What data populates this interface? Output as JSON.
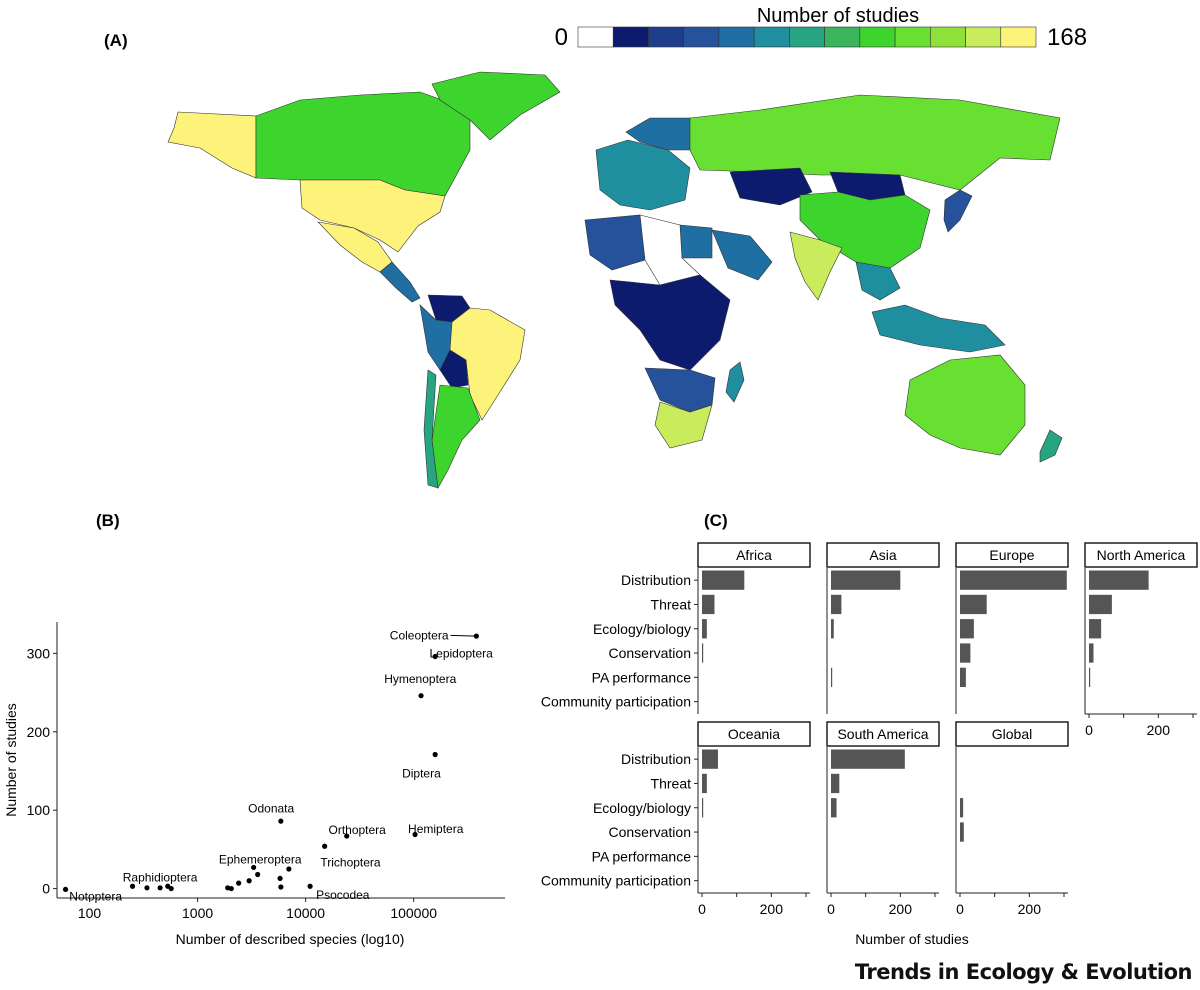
{
  "panels": {
    "a": "(A)",
    "b": "(B)",
    "c": "(C)"
  },
  "footer": {
    "journal": "Trends in Ecology & Evolution"
  },
  "map": {
    "legend_title": "Number of studies",
    "legend_min": "0",
    "legend_max": "168",
    "colorbar": [
      "#ffffff",
      "#0d1b6e",
      "#1e3d8a",
      "#25529a",
      "#1f6fa3",
      "#1f8f9f",
      "#27a582",
      "#3bb55c",
      "#3ed42e",
      "#67e031",
      "#8fe038",
      "#c8ec5c",
      "#fdf27a"
    ],
    "regions": [
      {
        "name": "Alaska",
        "color": "#fdf27a"
      },
      {
        "name": "Canada",
        "color": "#3ed42e"
      },
      {
        "name": "Greenland",
        "color": "#3ed42e"
      },
      {
        "name": "United States",
        "color": "#fdf27a"
      },
      {
        "name": "Mexico",
        "color": "#fdf27a"
      },
      {
        "name": "Central America",
        "color": "#1f6fa3"
      },
      {
        "name": "Colombia / Venezuela",
        "color": "#0d1b6e"
      },
      {
        "name": "Peru",
        "color": "#1f6fa3"
      },
      {
        "name": "Brazil",
        "color": "#fdf27a"
      },
      {
        "name": "Bolivia",
        "color": "#0d1b6e"
      },
      {
        "name": "Argentina",
        "color": "#3ed42e"
      },
      {
        "name": "Chile",
        "color": "#27a582"
      },
      {
        "name": "Russia",
        "color": "#67e031"
      },
      {
        "name": "Scandinavia",
        "color": "#1f6fa3"
      },
      {
        "name": "Europe",
        "color": "#1f8f9f"
      },
      {
        "name": "Kazakhstan",
        "color": "#0d1b6e"
      },
      {
        "name": "Mongolia",
        "color": "#0d1b6e"
      },
      {
        "name": "China",
        "color": "#3ed42e"
      },
      {
        "name": "India",
        "color": "#c8ec5c"
      },
      {
        "name": "Japan",
        "color": "#25529a"
      },
      {
        "name": "Southeast Asia",
        "color": "#1f8f9f"
      },
      {
        "name": "Indonesia",
        "color": "#1f8f9f"
      },
      {
        "name": "Australia",
        "color": "#67e031"
      },
      {
        "name": "New Zealand",
        "color": "#27a582"
      },
      {
        "name": "Algeria",
        "color": "#25529a"
      },
      {
        "name": "Egypt",
        "color": "#1f6fa3"
      },
      {
        "name": "Central Africa",
        "color": "#0d1b6e"
      },
      {
        "name": "Southern Africa",
        "color": "#25529a"
      },
      {
        "name": "South Africa",
        "color": "#c8ec5c"
      },
      {
        "name": "Madagascar",
        "color": "#1f8f9f"
      },
      {
        "name": "Arabian Peninsula",
        "color": "#1f6fa3"
      }
    ]
  },
  "chart_data": [
    {
      "type": "scatter",
      "title": "",
      "xlabel": "Number of described species (log10)",
      "ylabel": "Number of studies",
      "xscale": "log10",
      "xlim": [
        50,
        700000
      ],
      "ylim": [
        -12,
        340
      ],
      "xticks": [
        100,
        1000,
        10000,
        100000
      ],
      "xtick_labels": [
        "100",
        "1000",
        "10000",
        "100000"
      ],
      "yticks": [
        0,
        100,
        200,
        300
      ],
      "ytick_labels": [
        "0",
        "100",
        "200",
        "300"
      ],
      "points": [
        {
          "label": "Coleoptera",
          "x": 380000,
          "y": 322,
          "lx": 210000,
          "ly": 323,
          "anchor": "end"
        },
        {
          "label": "Lepidoptera",
          "x": 158000,
          "y": 296,
          "lx": 140000,
          "ly": 300,
          "anchor": "start"
        },
        {
          "label": "Hymenoptera",
          "x": 117000,
          "y": 246,
          "lx": 115000,
          "ly": 267,
          "anchor": "middle"
        },
        {
          "label": "Diptera",
          "x": 158000,
          "y": 171,
          "lx": 118000,
          "ly": 147,
          "anchor": "middle"
        },
        {
          "label": "Hemiptera",
          "x": 103000,
          "y": 69,
          "lx": 160000,
          "ly": 76,
          "anchor": "middle"
        },
        {
          "label": "Odonata",
          "x": 5900,
          "y": 86,
          "lx": 4800,
          "ly": 102,
          "anchor": "middle"
        },
        {
          "label": "Orthoptera",
          "x": 24000,
          "y": 67,
          "lx": 30000,
          "ly": 75,
          "anchor": "middle"
        },
        {
          "label": "Trichoptera",
          "x": 15000,
          "y": 54,
          "lx": 26000,
          "ly": 33,
          "anchor": "middle"
        },
        {
          "label": "Ephemeroptera",
          "x": 3300,
          "y": 27,
          "lx": 3800,
          "ly": 37,
          "anchor": "middle"
        },
        {
          "label": "Raphidioptera",
          "x": 250,
          "y": 3,
          "lx": 450,
          "ly": 14,
          "anchor": "middle"
        },
        {
          "label": "Notoptera",
          "x": 60,
          "y": -1,
          "lx": 65,
          "ly": -10,
          "anchor": "start"
        },
        {
          "label": "Psocodea",
          "x": 11000,
          "y": 3,
          "lx": 12500,
          "ly": -8,
          "anchor": "start"
        },
        {
          "label": "",
          "x": 340,
          "y": 1
        },
        {
          "label": "",
          "x": 450,
          "y": 1
        },
        {
          "label": "",
          "x": 530,
          "y": 3
        },
        {
          "label": "",
          "x": 570,
          "y": 0
        },
        {
          "label": "",
          "x": 1900,
          "y": 1
        },
        {
          "label": "",
          "x": 2050,
          "y": 0
        },
        {
          "label": "",
          "x": 2400,
          "y": 7
        },
        {
          "label": "",
          "x": 3000,
          "y": 10
        },
        {
          "label": "",
          "x": 3600,
          "y": 18
        },
        {
          "label": "",
          "x": 5800,
          "y": 13
        },
        {
          "label": "",
          "x": 5900,
          "y": 2
        },
        {
          "label": "",
          "x": 7000,
          "y": 25
        }
      ]
    },
    {
      "type": "bar",
      "orientation": "horizontal",
      "facets": true,
      "xlabel": "Number of studies",
      "xlim": [
        0,
        300
      ],
      "xticks": [
        0,
        200
      ],
      "xtick_labels": [
        "0",
        "200"
      ],
      "categories": [
        "Distribution",
        "Threat",
        "Ecology/biology",
        "Conservation",
        "PA performance",
        "Community participation"
      ],
      "series": [
        {
          "name": "Africa",
          "values": [
            122,
            36,
            14,
            2,
            0,
            0
          ]
        },
        {
          "name": "Asia",
          "values": [
            200,
            30,
            8,
            0,
            3,
            0
          ]
        },
        {
          "name": "Europe",
          "values": [
            308,
            77,
            40,
            30,
            17,
            0
          ]
        },
        {
          "name": "North America",
          "values": [
            172,
            66,
            35,
            13,
            3,
            0
          ]
        },
        {
          "name": "Oceania",
          "values": [
            46,
            14,
            2,
            0,
            0,
            0
          ]
        },
        {
          "name": "South America",
          "values": [
            213,
            24,
            16,
            0,
            0,
            0
          ]
        },
        {
          "name": "Global",
          "values": [
            0,
            0,
            9,
            11,
            0,
            0
          ]
        }
      ]
    }
  ]
}
